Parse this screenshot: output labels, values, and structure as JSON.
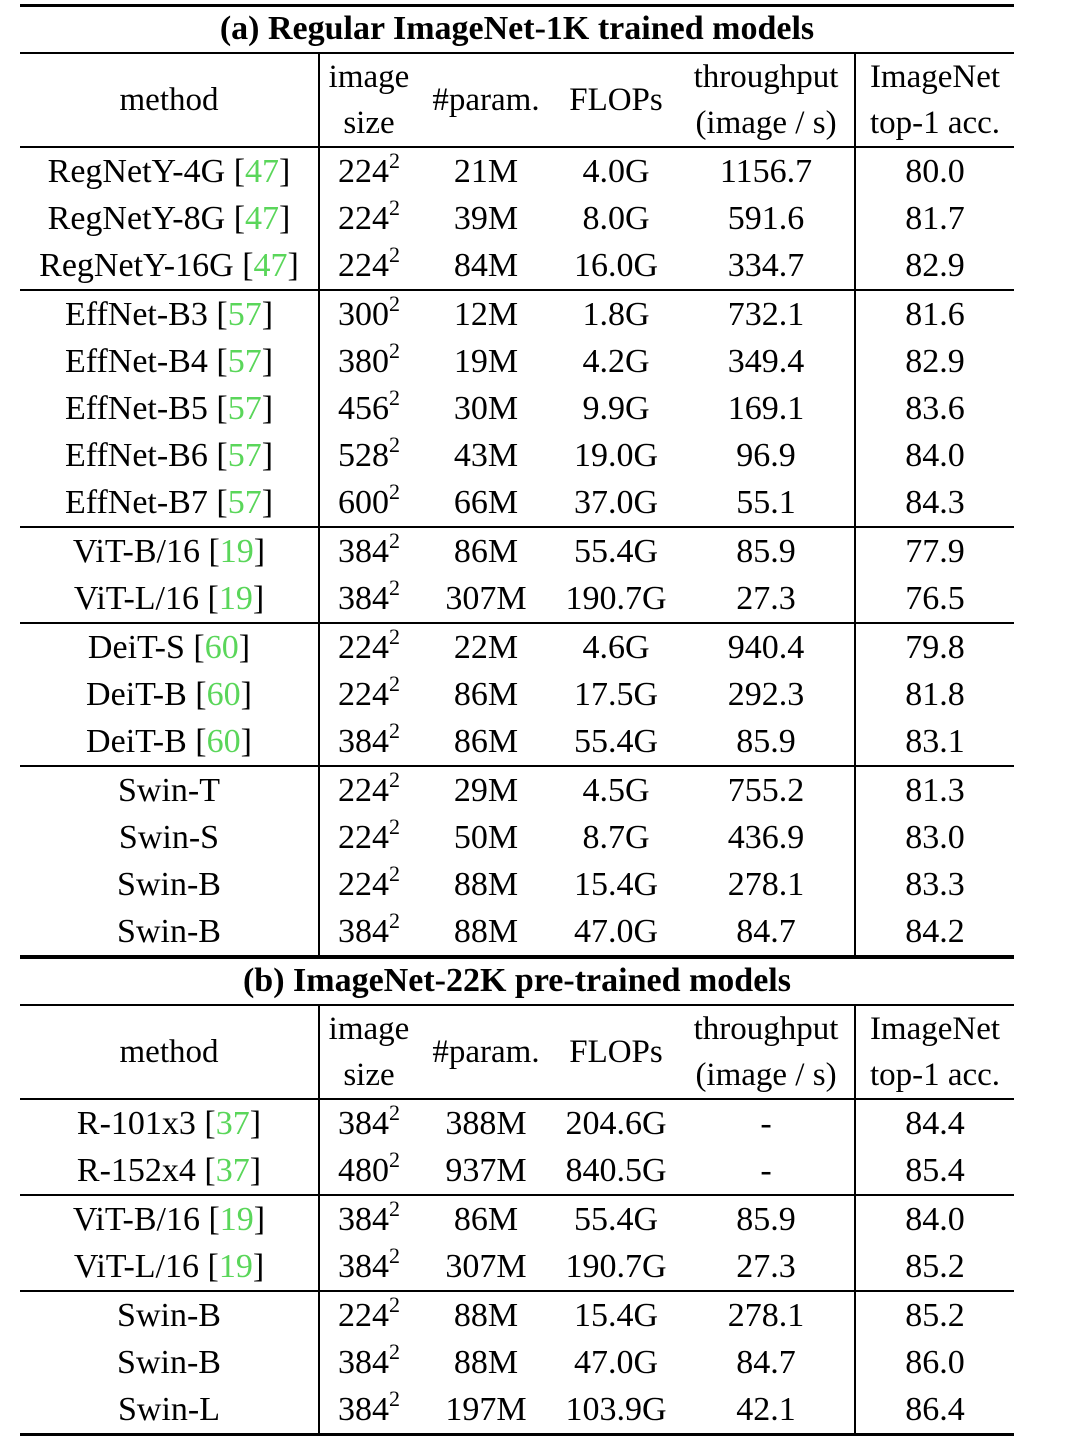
{
  "sections": [
    {
      "title": "(a) Regular ImageNet-1K trained models",
      "headers": {
        "method": [
          "method"
        ],
        "size": [
          "image",
          "size"
        ],
        "param": [
          "#param."
        ],
        "flops": [
          "FLOPs"
        ],
        "throughput": [
          "throughput",
          "(image / s)"
        ],
        "acc": [
          "ImageNet",
          "top-1 acc."
        ]
      },
      "groups": [
        [
          {
            "method": "RegNetY-4G",
            "cite": "47",
            "size": "224",
            "exp": "2",
            "param": "21M",
            "flops": "4.0G",
            "throughput": "1156.7",
            "acc": "80.0"
          },
          {
            "method": "RegNetY-8G",
            "cite": "47",
            "size": "224",
            "exp": "2",
            "param": "39M",
            "flops": "8.0G",
            "throughput": "591.6",
            "acc": "81.7"
          },
          {
            "method": "RegNetY-16G",
            "cite": "47",
            "size": "224",
            "exp": "2",
            "param": "84M",
            "flops": "16.0G",
            "throughput": "334.7",
            "acc": "82.9"
          }
        ],
        [
          {
            "method": "EffNet-B3",
            "cite": "57",
            "size": "300",
            "exp": "2",
            "param": "12M",
            "flops": "1.8G",
            "throughput": "732.1",
            "acc": "81.6"
          },
          {
            "method": "EffNet-B4",
            "cite": "57",
            "size": "380",
            "exp": "2",
            "param": "19M",
            "flops": "4.2G",
            "throughput": "349.4",
            "acc": "82.9"
          },
          {
            "method": "EffNet-B5",
            "cite": "57",
            "size": "456",
            "exp": "2",
            "param": "30M",
            "flops": "9.9G",
            "throughput": "169.1",
            "acc": "83.6"
          },
          {
            "method": "EffNet-B6",
            "cite": "57",
            "size": "528",
            "exp": "2",
            "param": "43M",
            "flops": "19.0G",
            "throughput": "96.9",
            "acc": "84.0"
          },
          {
            "method": "EffNet-B7",
            "cite": "57",
            "size": "600",
            "exp": "2",
            "param": "66M",
            "flops": "37.0G",
            "throughput": "55.1",
            "acc": "84.3"
          }
        ],
        [
          {
            "method": "ViT-B/16",
            "cite": "19",
            "size": "384",
            "exp": "2",
            "param": "86M",
            "flops": "55.4G",
            "throughput": "85.9",
            "acc": "77.9"
          },
          {
            "method": "ViT-L/16",
            "cite": "19",
            "size": "384",
            "exp": "2",
            "param": "307M",
            "flops": "190.7G",
            "throughput": "27.3",
            "acc": "76.5"
          }
        ],
        [
          {
            "method": "DeiT-S",
            "cite": "60",
            "size": "224",
            "exp": "2",
            "param": "22M",
            "flops": "4.6G",
            "throughput": "940.4",
            "acc": "79.8"
          },
          {
            "method": "DeiT-B",
            "cite": "60",
            "size": "224",
            "exp": "2",
            "param": "86M",
            "flops": "17.5G",
            "throughput": "292.3",
            "acc": "81.8"
          },
          {
            "method": "DeiT-B",
            "cite": "60",
            "size": "384",
            "exp": "2",
            "param": "86M",
            "flops": "55.4G",
            "throughput": "85.9",
            "acc": "83.1"
          }
        ],
        [
          {
            "method": "Swin-T",
            "cite": "",
            "size": "224",
            "exp": "2",
            "param": "29M",
            "flops": "4.5G",
            "throughput": "755.2",
            "acc": "81.3"
          },
          {
            "method": "Swin-S",
            "cite": "",
            "size": "224",
            "exp": "2",
            "param": "50M",
            "flops": "8.7G",
            "throughput": "436.9",
            "acc": "83.0"
          },
          {
            "method": "Swin-B",
            "cite": "",
            "size": "224",
            "exp": "2",
            "param": "88M",
            "flops": "15.4G",
            "throughput": "278.1",
            "acc": "83.3"
          },
          {
            "method": "Swin-B",
            "cite": "",
            "size": "384",
            "exp": "2",
            "param": "88M",
            "flops": "47.0G",
            "throughput": "84.7",
            "acc": "84.2"
          }
        ]
      ]
    },
    {
      "title": "(b) ImageNet-22K pre-trained models",
      "headers": {
        "method": [
          "method"
        ],
        "size": [
          "image",
          "size"
        ],
        "param": [
          "#param."
        ],
        "flops": [
          "FLOPs"
        ],
        "throughput": [
          "throughput",
          "(image / s)"
        ],
        "acc": [
          "ImageNet",
          "top-1 acc."
        ]
      },
      "groups": [
        [
          {
            "method": "R-101x3",
            "cite": "37",
            "size": "384",
            "exp": "2",
            "param": "388M",
            "flops": "204.6G",
            "throughput": "-",
            "acc": "84.4"
          },
          {
            "method": "R-152x4",
            "cite": "37",
            "size": "480",
            "exp": "2",
            "param": "937M",
            "flops": "840.5G",
            "throughput": "-",
            "acc": "85.4"
          }
        ],
        [
          {
            "method": "ViT-B/16",
            "cite": "19",
            "size": "384",
            "exp": "2",
            "param": "86M",
            "flops": "55.4G",
            "throughput": "85.9",
            "acc": "84.0"
          },
          {
            "method": "ViT-L/16",
            "cite": "19",
            "size": "384",
            "exp": "2",
            "param": "307M",
            "flops": "190.7G",
            "throughput": "27.3",
            "acc": "85.2"
          }
        ],
        [
          {
            "method": "Swin-B",
            "cite": "",
            "size": "224",
            "exp": "2",
            "param": "88M",
            "flops": "15.4G",
            "throughput": "278.1",
            "acc": "85.2"
          },
          {
            "method": "Swin-B",
            "cite": "",
            "size": "384",
            "exp": "2",
            "param": "88M",
            "flops": "47.0G",
            "throughput": "84.7",
            "acc": "86.0"
          },
          {
            "method": "Swin-L",
            "cite": "",
            "size": "384",
            "exp": "2",
            "param": "197M",
            "flops": "103.9G",
            "throughput": "42.1",
            "acc": "86.4"
          }
        ]
      ]
    }
  ]
}
